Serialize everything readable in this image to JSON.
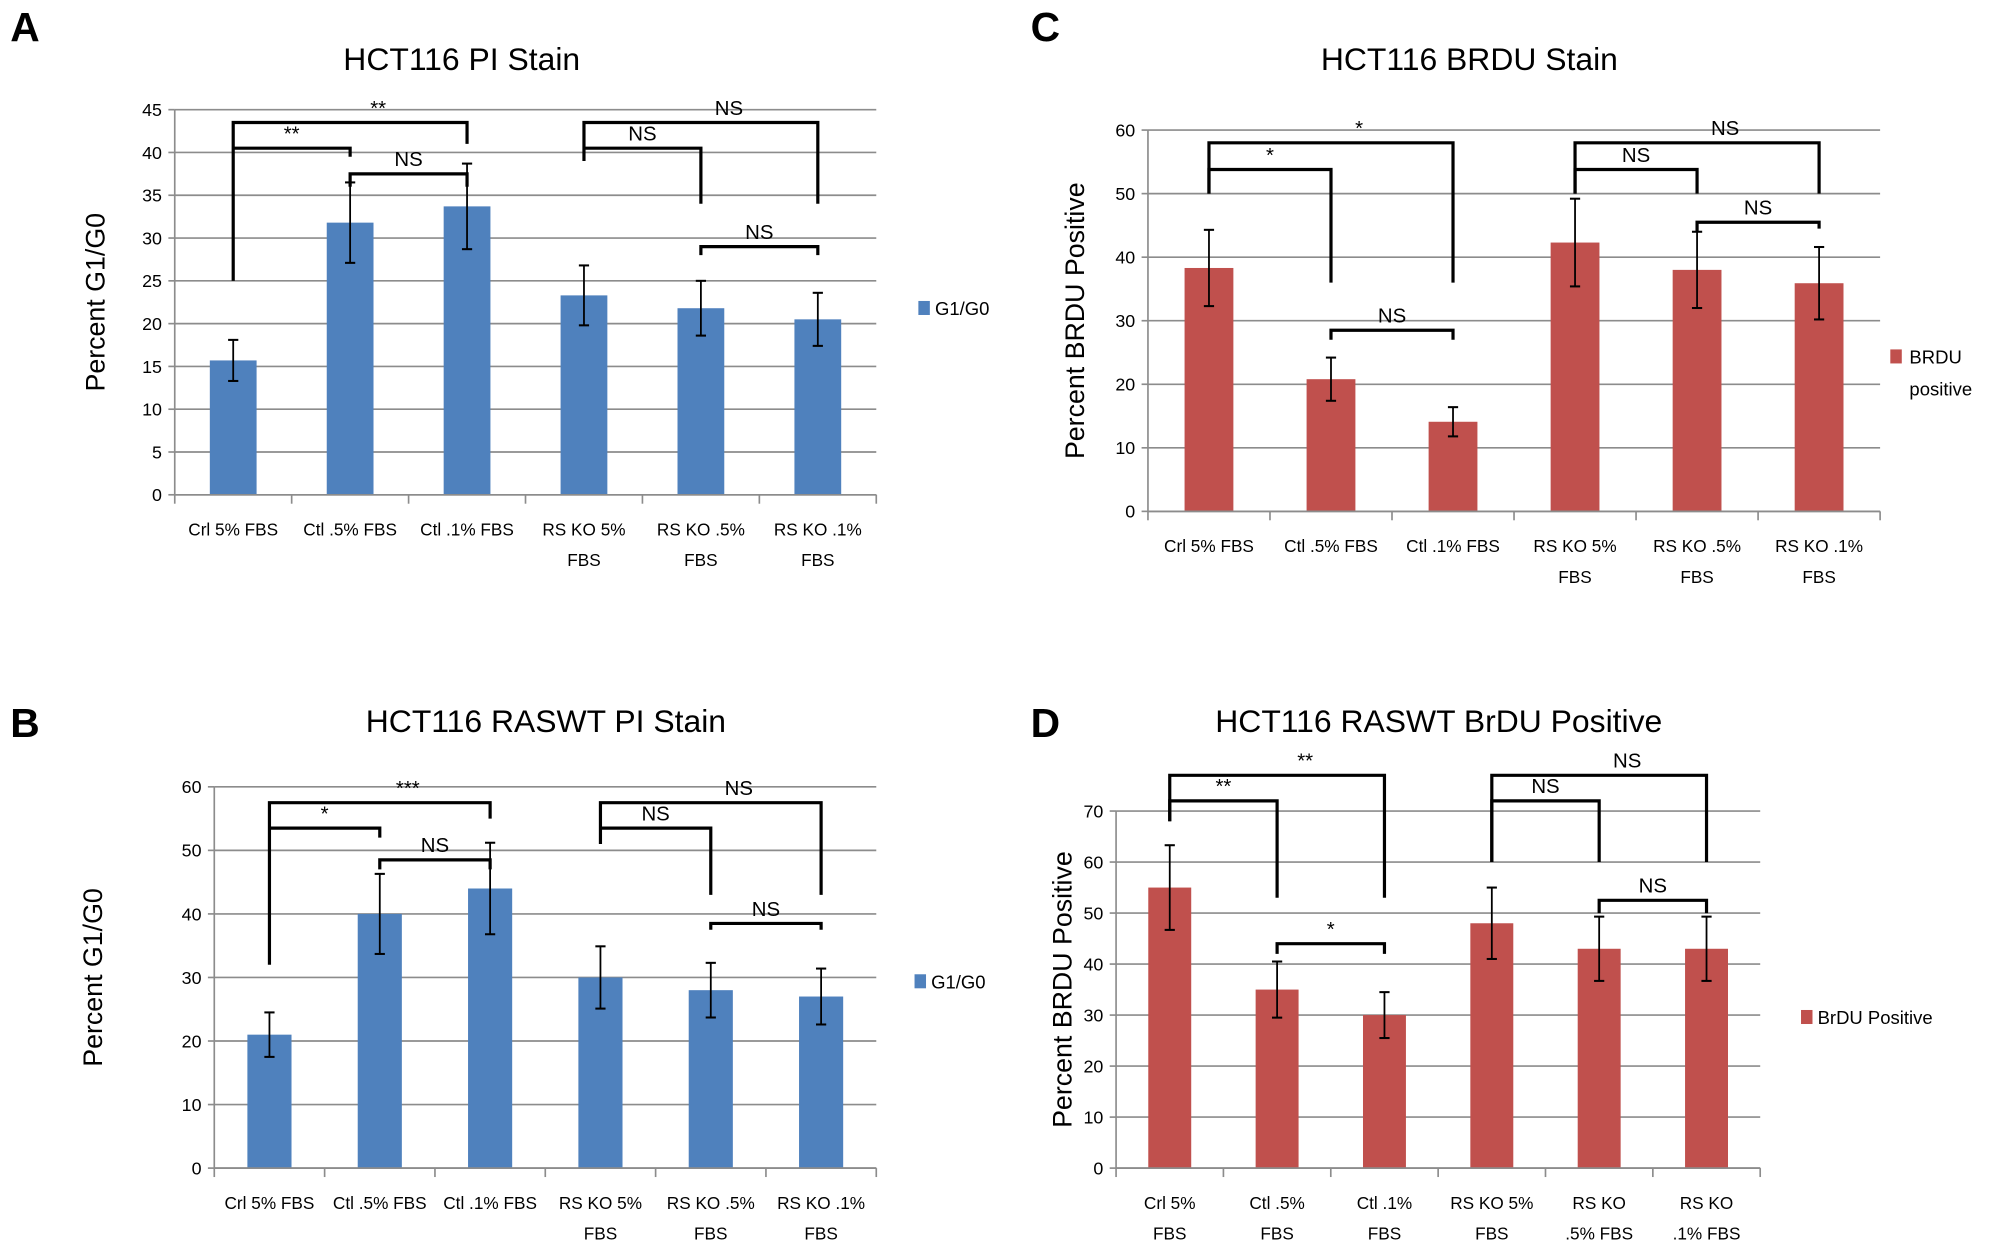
{
  "chart_data": [
    {
      "panel_label": "A",
      "type": "bar",
      "title": "HCT116 PI Stain",
      "ylabel": "Percent G1/G0",
      "xlabel": "",
      "ylim": [
        0,
        45
      ],
      "yticks": [
        0,
        5,
        10,
        15,
        20,
        25,
        30,
        35,
        40,
        45
      ],
      "grid": true,
      "legend_position": "right",
      "color": "#4f81bd",
      "categories": [
        [
          "Crl 5% FBS"
        ],
        [
          "Ctl .5% FBS"
        ],
        [
          "Ctl .1% FBS"
        ],
        [
          "RS KO 5%",
          "FBS"
        ],
        [
          "RS KO .5%",
          "FBS"
        ],
        [
          "RS KO .1%",
          "FBS"
        ]
      ],
      "series": [
        {
          "name": "G1/G0",
          "values": [
            15.7,
            31.8,
            33.7,
            23.3,
            21.8,
            20.5
          ],
          "errors": [
            2.4,
            4.7,
            5.0,
            3.5,
            3.2,
            3.1
          ]
        }
      ],
      "legend": [
        "G1/G0"
      ],
      "significance": [
        {
          "from": 0,
          "to": 2,
          "label": "**",
          "y": 43.5,
          "from_end": 25,
          "to_end": 41
        },
        {
          "from": 0,
          "to": 1,
          "label": "**",
          "y": 40.5,
          "from_end": 40.5,
          "to_end": 39.5
        },
        {
          "from": 1,
          "to": 2,
          "label": "NS",
          "y": 37.5,
          "from_end": 36,
          "to_end": 36
        },
        {
          "from": 3,
          "to": 5,
          "label": "NS",
          "y": 43.5,
          "from_end": 39,
          "to_end": 34
        },
        {
          "from": 3,
          "to": 4,
          "label": "NS",
          "y": 40.5,
          "from_end": 40.5,
          "to_end": 34
        },
        {
          "from": 4,
          "to": 5,
          "label": "NS",
          "y": 29,
          "from_end": 28,
          "to_end": 28
        }
      ]
    },
    {
      "panel_label": "B",
      "type": "bar",
      "title": "HCT116 RASWT PI Stain",
      "ylabel": "Percent G1/G0",
      "xlabel": "",
      "ylim": [
        0,
        60
      ],
      "yticks": [
        0,
        10,
        20,
        30,
        40,
        50,
        60
      ],
      "grid": true,
      "legend_position": "right",
      "color": "#4f81bd",
      "categories": [
        [
          "Crl 5% FBS"
        ],
        [
          "Ctl .5% FBS"
        ],
        [
          "Ctl .1% FBS"
        ],
        [
          "RS KO 5%",
          "FBS"
        ],
        [
          "RS KO .5%",
          "FBS"
        ],
        [
          "RS KO .1%",
          "FBS"
        ]
      ],
      "series": [
        {
          "name": "G1/G0",
          "values": [
            21,
            40,
            44,
            30,
            28,
            27
          ],
          "errors": [
            3.5,
            6.3,
            7.2,
            4.9,
            4.3,
            4.4
          ]
        }
      ],
      "legend": [
        "G1/G0"
      ],
      "significance": [
        {
          "from": 0,
          "to": 2,
          "label": "***",
          "y": 57.5,
          "from_end": 32,
          "to_end": 55
        },
        {
          "from": 0,
          "to": 1,
          "label": "*",
          "y": 53.5,
          "from_end": 53.5,
          "to_end": 52
        },
        {
          "from": 1,
          "to": 2,
          "label": "NS",
          "y": 48.5,
          "from_end": 47,
          "to_end": 47
        },
        {
          "from": 3,
          "to": 5,
          "label": "NS",
          "y": 57.5,
          "from_end": 51,
          "to_end": 43
        },
        {
          "from": 3,
          "to": 4,
          "label": "NS",
          "y": 53.5,
          "from_end": 53.5,
          "to_end": 43
        },
        {
          "from": 4,
          "to": 5,
          "label": "NS",
          "y": 38.5,
          "from_end": 37.5,
          "to_end": 37.5
        }
      ]
    },
    {
      "panel_label": "C",
      "type": "bar",
      "title": "HCT116 BRDU Stain",
      "ylabel": "Percent BRDU Positive",
      "xlabel": "",
      "ylim": [
        0,
        60
      ],
      "yticks": [
        0,
        10,
        20,
        30,
        40,
        50,
        60
      ],
      "grid": true,
      "legend_position": "right",
      "color": "#c0504d",
      "categories": [
        [
          "Crl 5% FBS"
        ],
        [
          "Ctl .5% FBS"
        ],
        [
          "Ctl .1% FBS"
        ],
        [
          "RS KO 5%",
          "FBS"
        ],
        [
          "RS KO .5%",
          "FBS"
        ],
        [
          "RS KO .1%",
          "FBS"
        ]
      ],
      "series": [
        {
          "name": "BRDU positive",
          "values": [
            38.3,
            20.8,
            14.1,
            42.3,
            38.0,
            35.9
          ],
          "errors": [
            6.0,
            3.4,
            2.3,
            6.9,
            6.0,
            5.7
          ]
        }
      ],
      "legend": [
        "BRDU",
        "positive"
      ],
      "significance": [
        {
          "from": 0,
          "to": 2,
          "label": "*",
          "y": 58,
          "from_end": 50,
          "to_end": 36
        },
        {
          "from": 0,
          "to": 1,
          "label": "*",
          "y": 53.8,
          "from_end": 50,
          "to_end": 36
        },
        {
          "from": 1,
          "to": 2,
          "label": "NS",
          "y": 28.5,
          "from_end": 27,
          "to_end": 27
        },
        {
          "from": 3,
          "to": 5,
          "label": "NS",
          "y": 58,
          "from_end": 50,
          "to_end": 50
        },
        {
          "from": 3,
          "to": 4,
          "label": "NS",
          "y": 53.8,
          "from_end": 50,
          "to_end": 50
        },
        {
          "from": 4,
          "to": 5,
          "label": "NS",
          "y": 45.5,
          "from_end": 44,
          "to_end": 44.5
        }
      ]
    },
    {
      "panel_label": "D",
      "type": "bar",
      "title": "HCT116 RASWT BrDU Positive",
      "ylabel": "Percent BRDU Positive",
      "xlabel": "",
      "ylim": [
        0,
        70
      ],
      "yticks": [
        0,
        10,
        20,
        30,
        40,
        50,
        60,
        70
      ],
      "grid": true,
      "legend_position": "right",
      "color": "#c0504d",
      "categories": [
        [
          "Crl 5%",
          "FBS"
        ],
        [
          "Ctl .5%",
          "FBS"
        ],
        [
          "Ctl .1%",
          "FBS"
        ],
        [
          "RS KO 5%",
          "FBS"
        ],
        [
          "RS KO",
          ".5% FBS"
        ],
        [
          "RS KO",
          ".1% FBS"
        ]
      ],
      "series": [
        {
          "name": "BrDU Positive",
          "values": [
            55,
            35,
            30,
            48,
            43,
            43
          ],
          "errors": [
            8.3,
            5.5,
            4.5,
            7.0,
            6.3,
            6.3
          ]
        }
      ],
      "legend": [
        "BrDU Positive"
      ],
      "significance": [
        {
          "from": 0,
          "to": 2,
          "label": "**",
          "y": 77,
          "from_end": 68,
          "to_end": 53
        },
        {
          "from": 0,
          "to": 1,
          "label": "**",
          "y": 72,
          "from_end": 68,
          "to_end": 53
        },
        {
          "from": 1,
          "to": 2,
          "label": "*",
          "y": 44,
          "from_end": 42,
          "to_end": 42
        },
        {
          "from": 3,
          "to": 5,
          "label": "NS",
          "y": 77,
          "from_end": 60,
          "to_end": 60
        },
        {
          "from": 3,
          "to": 4,
          "label": "NS",
          "y": 72,
          "from_end": 60,
          "to_end": 60
        },
        {
          "from": 4,
          "to": 5,
          "label": "NS",
          "y": 52.5,
          "from_end": 50,
          "to_end": 50
        }
      ]
    }
  ]
}
